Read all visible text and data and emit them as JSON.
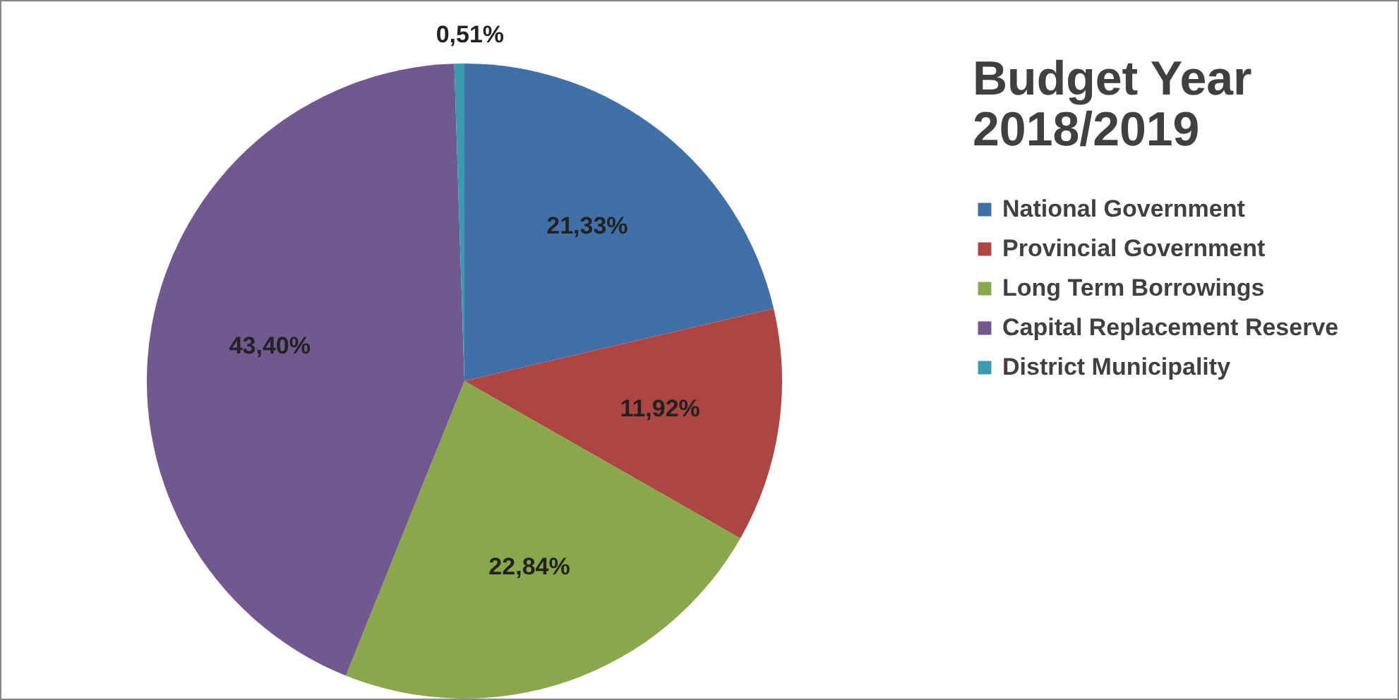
{
  "chart_data": {
    "type": "pie",
    "title": "Budget Year 2018/2019",
    "categories": [
      "National Government",
      "Provincial Government",
      "Long Term Borrowings",
      "Capital Replacement Reserve",
      "District Municipality"
    ],
    "values": [
      21.33,
      11.92,
      22.84,
      43.4,
      0.51
    ],
    "colors": [
      "#4170a8",
      "#ad4542",
      "#8aa84b",
      "#71588f",
      "#3a9bb0"
    ],
    "value_labels": [
      "21,33%",
      "11,92%",
      "22,84%",
      "43,40%",
      "0,51%"
    ],
    "legend": "right"
  }
}
